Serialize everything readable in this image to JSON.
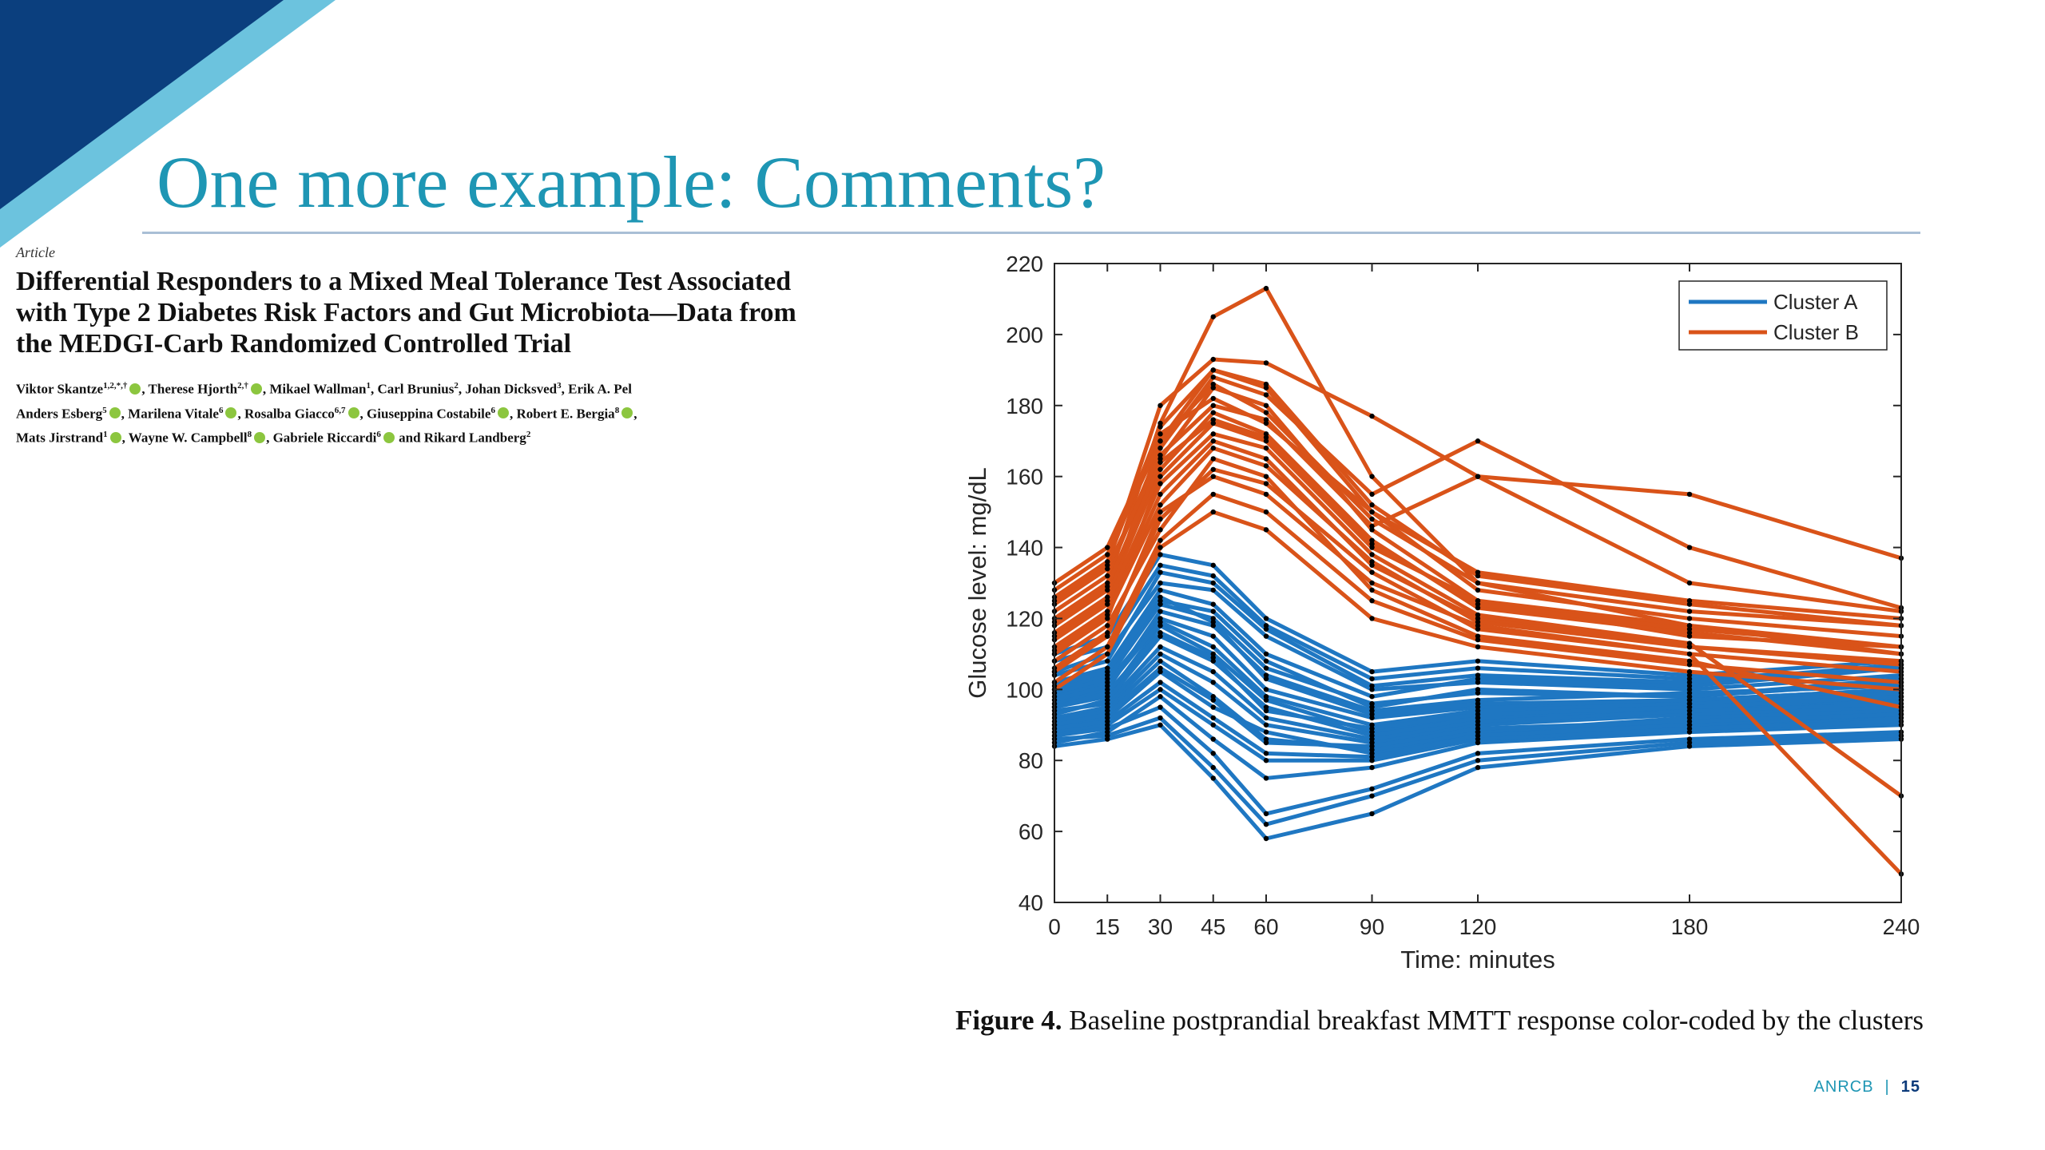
{
  "slide": {
    "title": "One more example: Comments?",
    "footer_org": "ANRCB",
    "footer_sep": "|",
    "page_number": "15",
    "colors": {
      "title": "#1e96b4",
      "corner_dark": "#0b3f7e",
      "corner_light": "#6cc3de"
    }
  },
  "paper": {
    "type": "Article",
    "title": "Differential Responders to a Mixed Meal Tolerance Test Associated with Type 2 Diabetes Risk Factors and Gut Microbiota—Data from the MEDGI-Carb Randomized Controlled Trial",
    "authors": [
      [
        {
          "name": "Viktor Skantze",
          "sup": "1,2,*,†",
          "orcid": true
        },
        {
          "name": ", Therese Hjorth",
          "sup": "2,†",
          "orcid": true
        },
        {
          "name": ", Mikael Wallman",
          "sup": "1",
          "orcid": false
        },
        {
          "name": ", Carl Brunius",
          "sup": "2",
          "orcid": false
        },
        {
          "name": ", Johan Dicksved",
          "sup": "3",
          "orcid": false
        },
        {
          "name": ", Erik A. Pel",
          "sup": "",
          "orcid": false
        }
      ],
      [
        {
          "name": "Anders Esberg",
          "sup": "5",
          "orcid": true
        },
        {
          "name": ", Marilena Vitale",
          "sup": "6",
          "orcid": true
        },
        {
          "name": ", Rosalba Giacco",
          "sup": "6,7",
          "orcid": true
        },
        {
          "name": ", Giuseppina Costabile",
          "sup": "6",
          "orcid": true
        },
        {
          "name": ", Robert E. Bergia",
          "sup": "8",
          "orcid": true
        },
        {
          "name": ",",
          "sup": "",
          "orcid": false
        }
      ],
      [
        {
          "name": "Mats Jirstrand",
          "sup": "1",
          "orcid": true
        },
        {
          "name": ", Wayne W. Campbell",
          "sup": "8",
          "orcid": true
        },
        {
          "name": ", Gabriele Riccardi",
          "sup": "6",
          "orcid": true
        },
        {
          "name": " and Rikard Landberg",
          "sup": "2",
          "orcid": false
        }
      ]
    ]
  },
  "figure": {
    "caption_label": "Figure 4.",
    "caption_text": "Baseline postprandial breakfast MMTT response color-coded by the clusters"
  },
  "chart_data": {
    "type": "line",
    "xlabel": "Time: minutes",
    "ylabel": "Glucose level: mg/dL",
    "x": [
      0,
      15,
      30,
      45,
      60,
      90,
      120,
      180,
      240
    ],
    "xticks": [
      "0",
      "15",
      "30",
      "45",
      "60",
      "90",
      "120",
      "180",
      "240"
    ],
    "yticks": [
      "40",
      "60",
      "80",
      "100",
      "120",
      "140",
      "160",
      "180",
      "200",
      "220"
    ],
    "xlim": [
      0,
      240
    ],
    "ylim": [
      40,
      220
    ],
    "grid": false,
    "legend_position": "top-right",
    "marker_color": "#000000",
    "series": [
      {
        "name": "Cluster A",
        "color": "#1f77c2",
        "values_approx": [
          [
            95,
            98,
            118,
            110,
            97,
            88,
            92,
            96,
            98
          ],
          [
            100,
            104,
            125,
            122,
            108,
            95,
            100,
            98,
            102
          ],
          [
            90,
            92,
            105,
            95,
            88,
            82,
            88,
            90,
            92
          ],
          [
            105,
            110,
            130,
            128,
            115,
            100,
            102,
            100,
            104
          ],
          [
            85,
            88,
            98,
            86,
            75,
            78,
            85,
            88,
            90
          ],
          [
            98,
            102,
            120,
            115,
            100,
            92,
            95,
            97,
            100
          ],
          [
            92,
            95,
            110,
            102,
            90,
            85,
            90,
            93,
            95
          ],
          [
            102,
            106,
            128,
            124,
            110,
            98,
            103,
            101,
            106
          ],
          [
            88,
            90,
            100,
            90,
            80,
            80,
            86,
            89,
            91
          ],
          [
            96,
            100,
            122,
            118,
            104,
            94,
            97,
            99,
            101
          ],
          [
            110,
            115,
            138,
            135,
            120,
            105,
            108,
            104,
            108
          ],
          [
            94,
            96,
            112,
            105,
            92,
            86,
            91,
            94,
            96
          ],
          [
            99,
            103,
            124,
            120,
            106,
            96,
            99,
            98,
            103
          ],
          [
            87,
            89,
            95,
            82,
            65,
            72,
            82,
            86,
            88
          ],
          [
            91,
            94,
            108,
            98,
            86,
            83,
            88,
            92,
            94
          ],
          [
            104,
            108,
            133,
            130,
            117,
            101,
            104,
            102,
            107
          ],
          [
            97,
            101,
            119,
            112,
            98,
            90,
            94,
            96,
            99
          ],
          [
            89,
            91,
            102,
            92,
            82,
            81,
            87,
            90,
            93
          ],
          [
            93,
            97,
            115,
            108,
            95,
            87,
            92,
            95,
            97
          ],
          [
            101,
            105,
            126,
            119,
            103,
            93,
            96,
            97,
            100
          ],
          [
            86,
            87,
            92,
            78,
            62,
            70,
            80,
            85,
            87
          ],
          [
            95,
            99,
            116,
            109,
            94,
            89,
            93,
            95,
            98
          ],
          [
            108,
            112,
            135,
            132,
            118,
            103,
            106,
            103,
            106
          ],
          [
            90,
            93,
            106,
            97,
            85,
            84,
            89,
            91,
            93
          ],
          [
            84,
            86,
            90,
            75,
            58,
            65,
            78,
            84,
            86
          ]
        ]
      },
      {
        "name": "Cluster B",
        "color": "#d95319",
        "values_approx": [
          [
            115,
            125,
            170,
            190,
            185,
            150,
            128,
            120,
            115
          ],
          [
            120,
            130,
            175,
            205,
            213,
            160,
            130,
            118,
            110
          ],
          [
            110,
            120,
            160,
            175,
            170,
            140,
            125,
            115,
            112
          ],
          [
            125,
            135,
            180,
            193,
            192,
            177,
            160,
            155,
            137
          ],
          [
            105,
            115,
            150,
            160,
            155,
            130,
            118,
            110,
            105
          ],
          [
            118,
            128,
            165,
            185,
            180,
            145,
            125,
            118,
            112
          ],
          [
            112,
            122,
            155,
            170,
            165,
            135,
            120,
            112,
            108
          ],
          [
            130,
            140,
            172,
            182,
            175,
            150,
            133,
            125,
            120
          ],
          [
            100,
            110,
            140,
            150,
            145,
            120,
            112,
            105,
            100
          ],
          [
            122,
            132,
            168,
            188,
            183,
            155,
            170,
            140,
            123
          ],
          [
            108,
            118,
            145,
            165,
            160,
            128,
            115,
            108,
            95
          ],
          [
            116,
            126,
            162,
            178,
            172,
            142,
            123,
            116,
            110
          ],
          [
            114,
            124,
            158,
            172,
            168,
            138,
            121,
            113,
            70
          ],
          [
            106,
            116,
            148,
            162,
            158,
            133,
            117,
            110,
            48
          ],
          [
            128,
            138,
            170,
            186,
            178,
            148,
            130,
            122,
            118
          ],
          [
            102,
            112,
            142,
            155,
            150,
            125,
            114,
            107,
            102
          ],
          [
            124,
            134,
            166,
            180,
            176,
            146,
            160,
            130,
            122
          ],
          [
            119,
            129,
            164,
            176,
            171,
            141,
            124,
            117,
            112
          ],
          [
            111,
            121,
            152,
            168,
            163,
            136,
            119,
            112,
            107
          ],
          [
            126,
            136,
            174,
            190,
            186,
            152,
            132,
            124,
            118
          ]
        ]
      }
    ]
  }
}
